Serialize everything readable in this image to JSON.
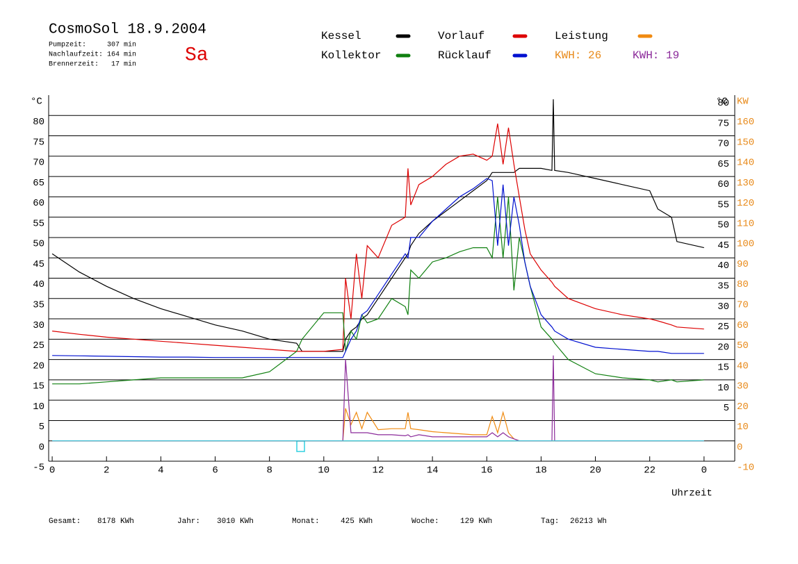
{
  "chart_data": {
    "type": "line",
    "title": "CosmoSol 18.9.2004",
    "info": [
      "Pumpzeit:     307 min",
      "Nachlaufzeit: 164 min",
      "Brennerzeit:   17 min"
    ],
    "day": "Sa",
    "y_unit": "°C",
    "y2_unit": "KW",
    "x_label": "Uhrzeit",
    "kwh_labels": [
      {
        "text": "KWH: 26",
        "color": "#e88a1a"
      },
      {
        "text": "KWH: 19",
        "color": "#8b2a9a"
      }
    ],
    "footer": [
      [
        "Gesamt:",
        "8178 KWh"
      ],
      [
        "Jahr:",
        "3010 KWh"
      ],
      [
        "Monat:",
        "425 KWh"
      ],
      [
        "Woche:",
        "129 KWh"
      ],
      [
        "Tag:",
        "26213 Wh"
      ]
    ],
    "x": [
      0,
      1,
      2,
      3,
      4,
      5,
      6,
      7,
      8,
      9,
      9.2,
      10,
      10.7,
      10.8,
      11,
      11.2,
      11.4,
      11.6,
      12,
      12.5,
      13,
      13.1,
      13.2,
      13.5,
      14,
      14.5,
      15,
      15.5,
      16,
      16.2,
      16.4,
      16.6,
      16.8,
      17,
      17.2,
      17.4,
      17.6,
      18,
      18.4,
      18.45,
      18.5,
      19,
      20,
      21,
      22,
      22.3,
      22.8,
      23,
      24
    ],
    "xlim": [
      -0.13,
      25.13
    ],
    "xticks": [
      0,
      2,
      4,
      6,
      8,
      10,
      12,
      14,
      16,
      18,
      20,
      22,
      {
        "value": 24,
        "label": "0"
      }
    ],
    "ylim": [
      -5,
      85
    ],
    "yticks": [
      -5,
      0,
      5,
      10,
      15,
      20,
      25,
      30,
      35,
      40,
      45,
      50,
      55,
      60,
      65,
      70,
      75,
      80
    ],
    "y_right_ticks": [
      5,
      10,
      15,
      20,
      25,
      30,
      35,
      40,
      45,
      50,
      55,
      60,
      65,
      70,
      75,
      80
    ],
    "y2lim": [
      -10,
      170
    ],
    "y2ticks": [
      -10,
      0,
      10,
      20,
      30,
      40,
      50,
      60,
      70,
      80,
      90,
      100,
      110,
      120,
      130,
      140,
      150,
      160
    ],
    "grid": true,
    "series": [
      {
        "name": "Kessel",
        "color": "#000000",
        "values": [
          46,
          41.5,
          38,
          35,
          32.5,
          30.5,
          28.5,
          27,
          25,
          24,
          22,
          22,
          22,
          25,
          27,
          28,
          30,
          31,
          35,
          40,
          45,
          46,
          48,
          51,
          54,
          56.5,
          59,
          61.5,
          64,
          66,
          66,
          66,
          66,
          66,
          67,
          67,
          67,
          67,
          66.5,
          84,
          66.5,
          66,
          64.5,
          63,
          61.5,
          57,
          55,
          49,
          47.5
        ]
      },
      {
        "name": "Vorlauf",
        "color": "#dd0000",
        "values": [
          27,
          26.2,
          25.5,
          25,
          24.5,
          24,
          23.5,
          23,
          22.5,
          22,
          22,
          22,
          22.5,
          40,
          30,
          46,
          35,
          48,
          45,
          53,
          55,
          67,
          58,
          63,
          65,
          68,
          70,
          70.5,
          69,
          70,
          78,
          68,
          77,
          68,
          60,
          52,
          46,
          42,
          39,
          38.5,
          38,
          35,
          32.5,
          31,
          30,
          29.5,
          28.5,
          28,
          27.5
        ]
      },
      {
        "name": "Leistung",
        "color": "#f08a10",
        "axis": "y2",
        "values": [
          0,
          0,
          0,
          0,
          0,
          0,
          0,
          0,
          0,
          0,
          0,
          0,
          0,
          16,
          8,
          14,
          6,
          14,
          5.5,
          6,
          6,
          14,
          6,
          5.5,
          4.5,
          4,
          3.5,
          3,
          3,
          12,
          4,
          14,
          4,
          1,
          0,
          0,
          0,
          0,
          0,
          0,
          0,
          0,
          0,
          0,
          0,
          0,
          0,
          0,
          0
        ]
      },
      {
        "name": "Kollektor",
        "color": "#108010",
        "values": [
          14,
          14,
          14.5,
          15,
          15.5,
          15.5,
          15.5,
          15.5,
          17,
          22,
          25,
          31.5,
          31.5,
          22,
          27,
          25,
          31,
          29,
          30,
          35,
          33,
          31,
          42,
          40,
          44,
          45,
          46.5,
          47.5,
          47.5,
          45,
          60,
          45,
          60,
          37,
          50,
          44,
          38,
          28,
          25,
          24.5,
          24,
          20,
          16.5,
          15.5,
          15,
          14.5,
          15,
          14.5,
          15
        ]
      },
      {
        "name": "Rücklauf",
        "color": "#0010d0",
        "values": [
          21,
          20.9,
          20.8,
          20.7,
          20.6,
          20.6,
          20.5,
          20.5,
          20.5,
          20.5,
          20.5,
          20.5,
          20.5,
          22,
          25,
          27,
          31,
          32,
          36,
          41,
          46,
          45,
          50,
          50,
          54,
          57,
          60,
          62,
          64.5,
          64,
          48,
          63,
          48,
          60,
          53,
          44,
          38,
          31,
          28,
          27.5,
          27,
          25,
          23,
          22.5,
          22,
          22,
          21.5,
          21.5,
          21.5
        ]
      },
      {
        "color": "#8b2a9a",
        "axis": "y2",
        "values": [
          0,
          0,
          0,
          0,
          0,
          0,
          0,
          0,
          0,
          0,
          0,
          0,
          0,
          40,
          4,
          4,
          4,
          4,
          3,
          3,
          2.5,
          3,
          2,
          3,
          2,
          2,
          2,
          2,
          2,
          4,
          2,
          4,
          2,
          1,
          0,
          0,
          0,
          0,
          0,
          42,
          0,
          0,
          0,
          0,
          0,
          0,
          0,
          0,
          0
        ]
      },
      {
        "color": "#30d0e0",
        "values": [
          0,
          0,
          0,
          0,
          0,
          0,
          0,
          0,
          0,
          0,
          0,
          0,
          0,
          0,
          0,
          0,
          0,
          0,
          0,
          0,
          0,
          0,
          0,
          0,
          0,
          0,
          0,
          0,
          0,
          0,
          0,
          0,
          0,
          0,
          0,
          0,
          0,
          0,
          0,
          0,
          0,
          0,
          0,
          0,
          0,
          0,
          0,
          0,
          0
        ]
      }
    ]
  }
}
